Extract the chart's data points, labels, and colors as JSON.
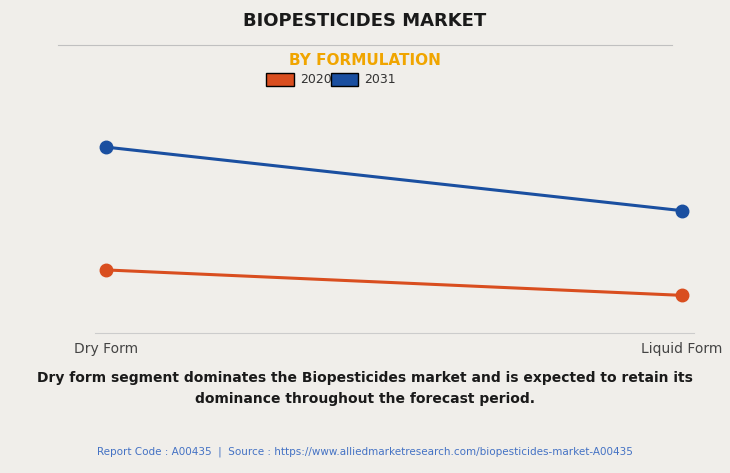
{
  "title": "BIOPESTICIDES MARKET",
  "subtitle": "BY FORMULATION",
  "subtitle_color": "#f0a500",
  "categories": [
    "Dry Form",
    "Liquid Form"
  ],
  "series": [
    {
      "label": "2020",
      "color": "#d94e1f",
      "values": [
        0.3,
        0.18
      ]
    },
    {
      "label": "2031",
      "color": "#1a4fa0",
      "values": [
        0.88,
        0.58
      ]
    }
  ],
  "ylim": [
    0,
    1.05
  ],
  "background_color": "#f0eeea",
  "plot_background_color": "#f0eeea",
  "grid_color": "#cccccc",
  "title_fontsize": 13,
  "subtitle_fontsize": 11,
  "annotation_text": "Dry form segment dominates the Biopesticides market and is expected to retain its\ndominance throughout the forecast period.",
  "source_text": "Report Code : A00435  |  Source : https://www.alliedmarketresearch.com/biopesticides-market-A00435",
  "source_color": "#4472c4",
  "marker_size": 9,
  "line_width": 2.2
}
